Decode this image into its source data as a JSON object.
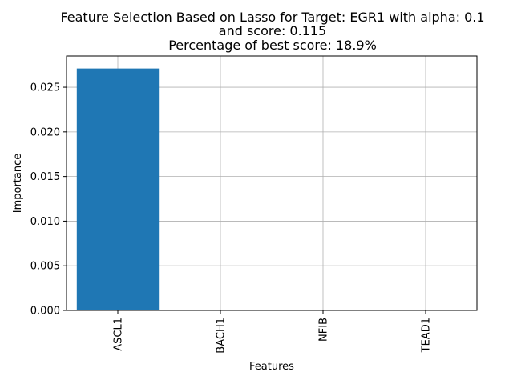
{
  "chart_data": {
    "type": "bar",
    "title_lines": [
      "Feature Selection Based on Lasso for Target: EGR1 with alpha: 0.1",
      "and score: 0.115",
      "Percentage of best score: 18.9%"
    ],
    "xlabel": "Features",
    "ylabel": "Importance",
    "categories": [
      "ASCL1",
      "BACH1",
      "NFIB",
      "TEAD1"
    ],
    "values": [
      0.0271,
      0.0,
      0.0,
      0.0
    ],
    "ylim": [
      0,
      0.0285
    ],
    "yticks": [
      0.0,
      0.005,
      0.01,
      0.015,
      0.02,
      0.025
    ],
    "ytick_labels": [
      "0.000",
      "0.005",
      "0.010",
      "0.015",
      "0.020",
      "0.025"
    ],
    "grid": true,
    "bar_color": "#1f77b4",
    "grid_color": "#b0b0b0"
  }
}
